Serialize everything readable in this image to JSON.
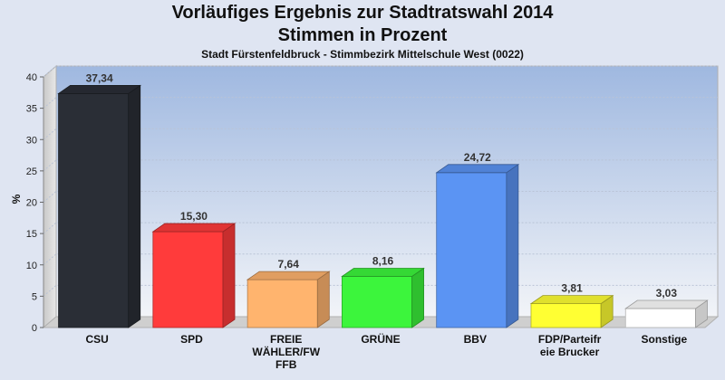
{
  "chart_data": {
    "type": "bar",
    "title": "Vorläufiges Ergebnis zur Stadtratswahl 2014",
    "subtitle": "Stimmen in Prozent",
    "subtitle2": "Stadt Fürstenfeldbruck - Stimmbezirk Mittelschule West (0022)",
    "ylabel": "%",
    "xlabel": "",
    "ylim": [
      0,
      40
    ],
    "yticks": [
      "0",
      "5",
      "10",
      "15",
      "20",
      "25",
      "30",
      "35",
      "40"
    ],
    "grid": true,
    "categories": [
      [
        "CSU"
      ],
      [
        "SPD"
      ],
      [
        "FREIE",
        "WÄHLER/FW",
        "FFB"
      ],
      [
        "GRÜNE"
      ],
      [
        "BBV"
      ],
      [
        "FDP/Parteifr",
        "eie Brucker"
      ],
      [
        "Sonstige"
      ]
    ],
    "values": [
      37.34,
      15.3,
      7.64,
      8.16,
      24.72,
      3.81,
      3.03
    ],
    "value_labels": [
      "37,34",
      "15,30",
      "7,64",
      "8,16",
      "24,72",
      "3,81",
      "3,03"
    ],
    "colors": [
      "#2a2e36",
      "#ff3b3b",
      "#ffb46e",
      "#3cf53c",
      "#5b94f3",
      "#ffff33",
      "#ffffff"
    ]
  }
}
